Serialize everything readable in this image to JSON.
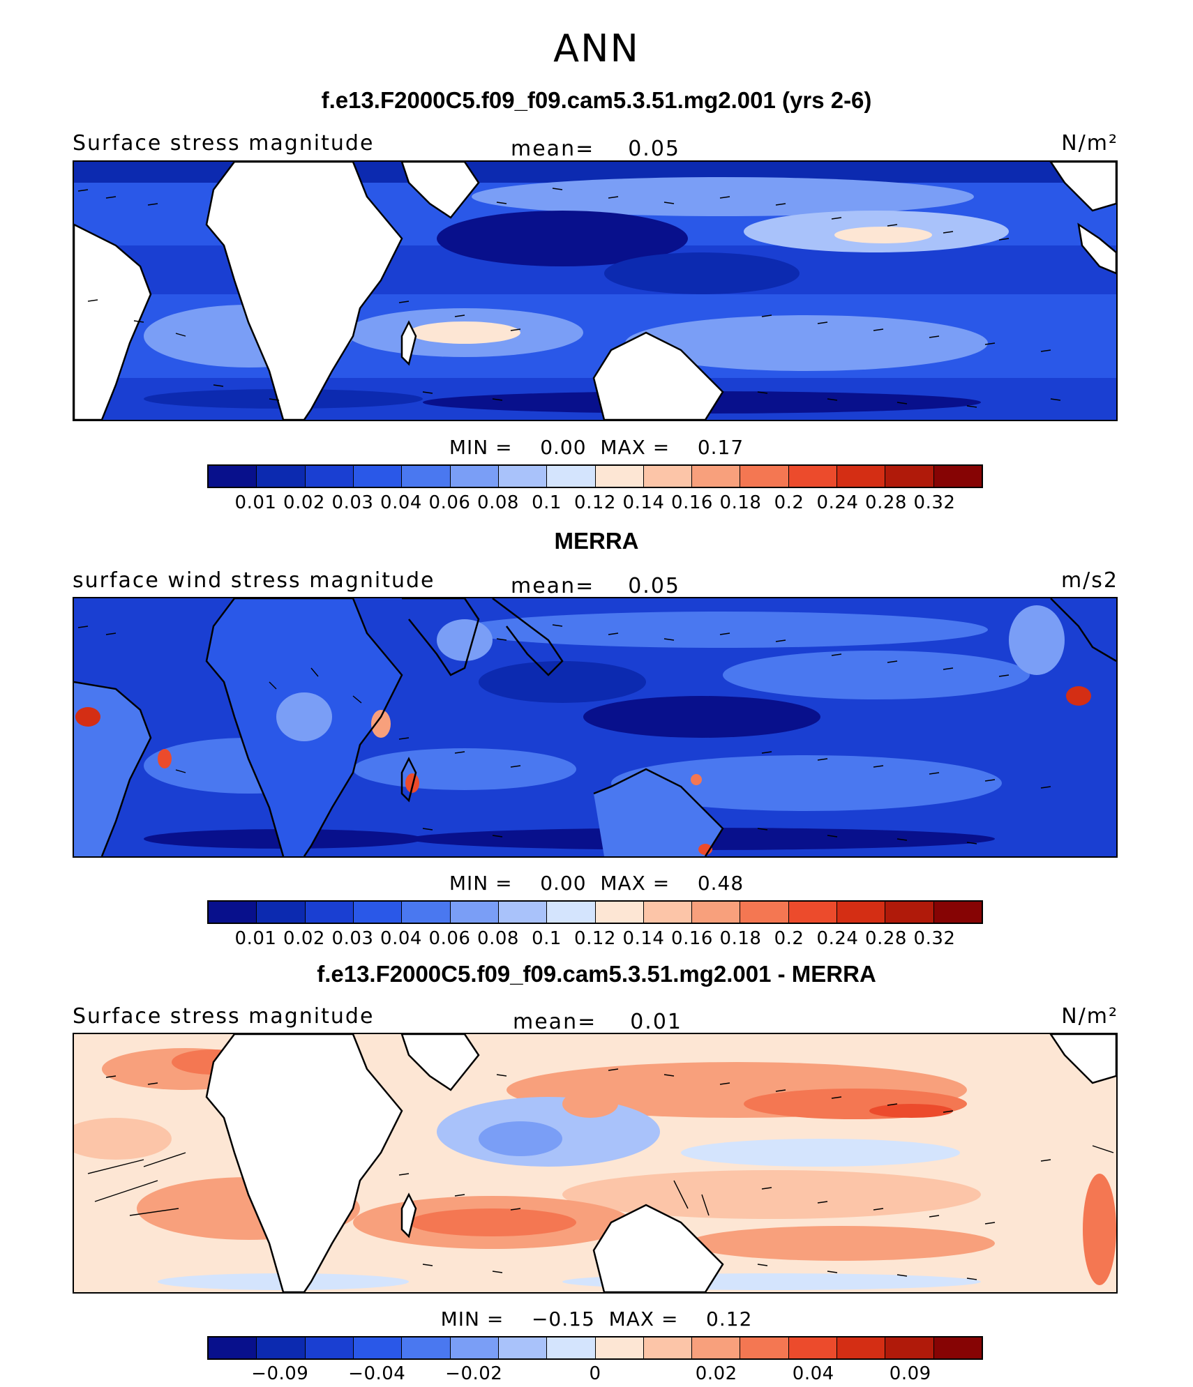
{
  "title": "ANN",
  "panels": [
    {
      "title": "f.e13.F2000C5.f09_f09.cam5.3.51.mg2.001 (yrs 2-6)",
      "variable": "Surface stress magnitude",
      "mean_label": "mean=",
      "mean_value": "0.05",
      "units": "N/m²",
      "min_label": "MIN =",
      "min_value": "0.00",
      "max_label": "MAX =",
      "max_value": "0.17",
      "colorbar_ticks": [
        "0.01",
        "0.02",
        "0.03",
        "0.04",
        "0.06",
        "0.08",
        "0.1",
        "0.12",
        "0.14",
        "0.16",
        "0.18",
        "0.2",
        "0.24",
        "0.28",
        "0.32"
      ]
    },
    {
      "title": "MERRA",
      "variable": "surface wind stress magnitude",
      "mean_label": "mean=",
      "mean_value": "0.05",
      "units": "m/s2",
      "min_label": "MIN =",
      "min_value": "0.00",
      "max_label": "MAX =",
      "max_value": "0.48",
      "colorbar_ticks": [
        "0.01",
        "0.02",
        "0.03",
        "0.04",
        "0.06",
        "0.08",
        "0.1",
        "0.12",
        "0.14",
        "0.16",
        "0.18",
        "0.2",
        "0.24",
        "0.28",
        "0.32"
      ]
    },
    {
      "title": "f.e13.F2000C5.f09_f09.cam5.3.51.mg2.001 - MERRA",
      "variable": "Surface stress magnitude",
      "mean_label": "mean=",
      "mean_value": "0.01",
      "units": "N/m²",
      "min_label": "MIN =",
      "min_value": "−0.15",
      "max_label": "MAX =",
      "max_value": "0.12",
      "colorbar_ticks": [
        "−0.09",
        "−0.04",
        "−0.02",
        "0",
        "0.02",
        "0.04",
        "0.09"
      ]
    }
  ],
  "colors": {
    "scale": [
      "#08108c",
      "#0c2ab0",
      "#1a3fd2",
      "#2a58e8",
      "#4a78f0",
      "#7a9ef6",
      "#a9c2fa",
      "#d4e4fd",
      "#fde6d4",
      "#fcc5a8",
      "#f8a07c",
      "#f47752",
      "#ec4b2c",
      "#d42e14",
      "#b01a0a",
      "#860404"
    ],
    "land": "#ffffff",
    "coast": "#000000",
    "arrow": "#000000"
  }
}
